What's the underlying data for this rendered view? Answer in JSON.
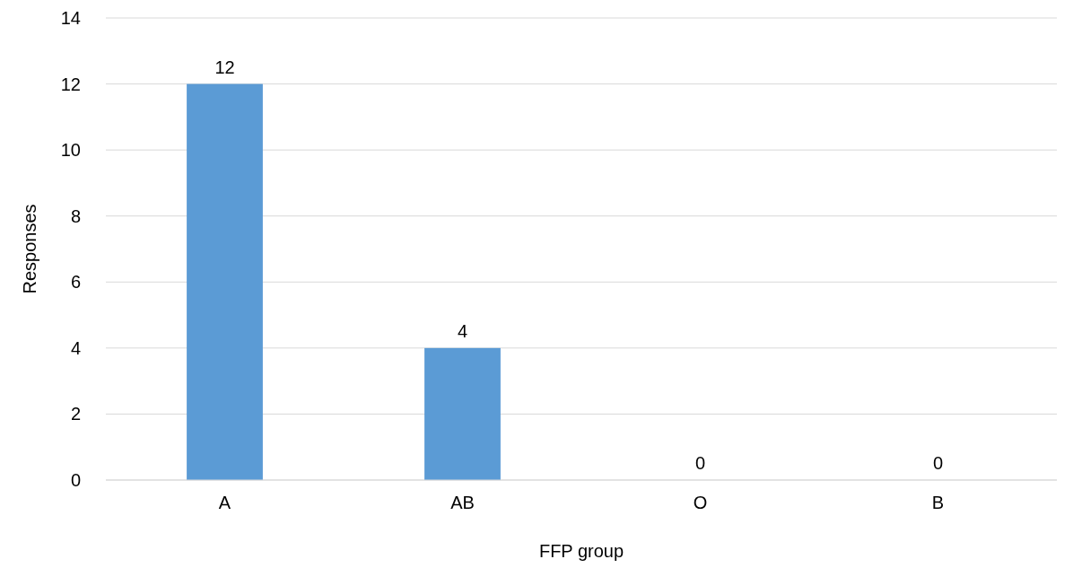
{
  "chart_data": {
    "type": "bar",
    "xlabel": "FFP group",
    "ylabel": "Responses",
    "categories": [
      "A",
      "AB",
      "O",
      "B"
    ],
    "values": [
      12,
      4,
      0,
      0
    ],
    "color": "#5b9bd5",
    "ylim": [
      0,
      14
    ],
    "yticks": [
      0,
      2,
      4,
      6,
      8,
      10,
      12,
      14
    ],
    "grid": "y",
    "data_labels": true
  }
}
